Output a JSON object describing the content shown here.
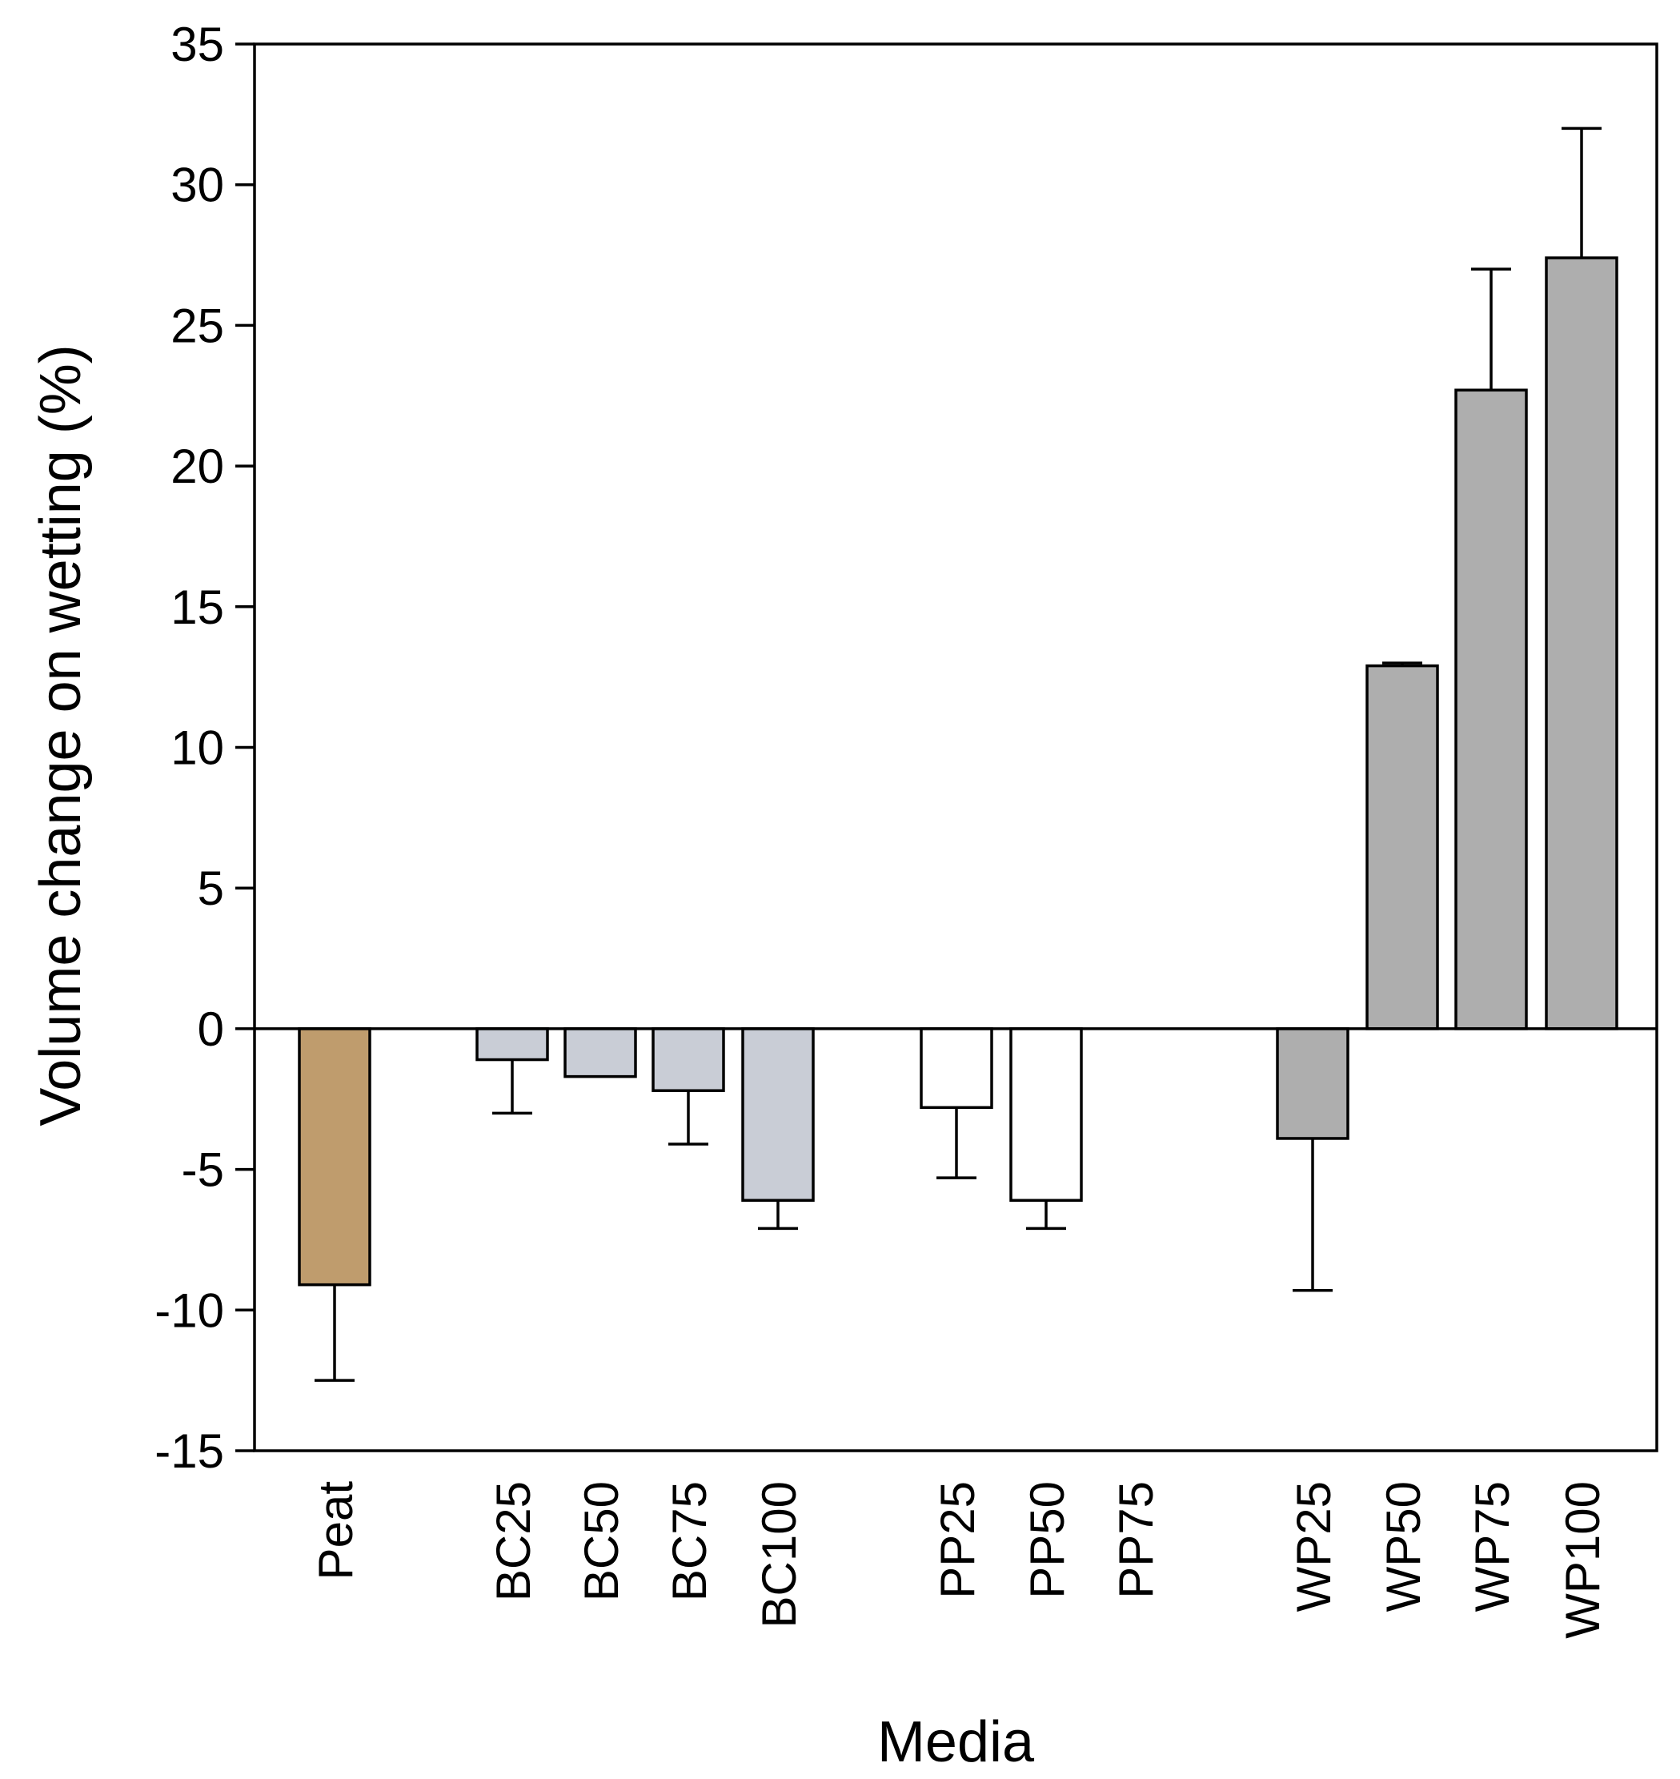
{
  "chart_data": {
    "type": "bar",
    "title": "",
    "xlabel": "Media",
    "ylabel": "Volume change on wetting (%)",
    "ylim": [
      -15,
      35
    ],
    "yticks": [
      35,
      30,
      25,
      20,
      15,
      10,
      5,
      0,
      -5,
      -10,
      -15
    ],
    "ytick_labels": [
      "35",
      "30",
      "25",
      "20",
      "15",
      "10",
      "5",
      "0",
      "-5",
      "-10",
      "-15"
    ],
    "grid": false,
    "error_bars": "one-sided, away from zero",
    "categories": [
      "Peat",
      "BC25",
      "BC50",
      "BC75",
      "BC100",
      "PP25",
      "PP50",
      "PP75",
      "WP25",
      "WP50",
      "WP75",
      "WP100"
    ],
    "values": [
      -9.1,
      -1.1,
      -1.7,
      -2.2,
      -6.1,
      -2.8,
      -6.1,
      0,
      -3.9,
      12.9,
      22.7,
      27.4
    ],
    "errors": [
      3.4,
      1.9,
      0,
      1.9,
      1.0,
      2.5,
      1.0,
      0,
      5.4,
      0.1,
      4.3,
      4.6
    ],
    "colors": [
      "#BF9C6D",
      "#C9CDD6",
      "#C9CDD6",
      "#C9CDD6",
      "#C9CDD6",
      "#FFFFFF",
      "#FFFFFF",
      "#FFFFFF",
      "#AEAEAE",
      "#AEAEAE",
      "#AEAEAE",
      "#AEAEAE"
    ]
  }
}
